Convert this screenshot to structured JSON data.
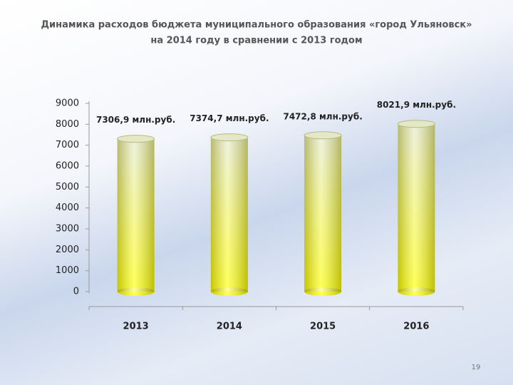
{
  "chart_data": {
    "type": "bar",
    "title": [
      "Динамика расходов бюджета муниципального образования «город Ульяновск»",
      "на 2014 году в сравнении с 2013 годом"
    ],
    "categories": [
      "2013",
      "2014",
      "2015",
      "2016"
    ],
    "values": [
      7306.9,
      7374.7,
      7472.8,
      8021.9
    ],
    "value_labels": [
      "7306,9 млн.руб.",
      "7374,7 млн.руб.",
      "7472,8 млн.руб.",
      "8021,9 млн.руб."
    ],
    "color": "#ffff00",
    "ylim": [
      0,
      9000
    ],
    "yticks": [
      0,
      1000,
      2000,
      3000,
      4000,
      5000,
      6000,
      7000,
      8000,
      9000
    ],
    "grid": false
  },
  "page_number": 19
}
